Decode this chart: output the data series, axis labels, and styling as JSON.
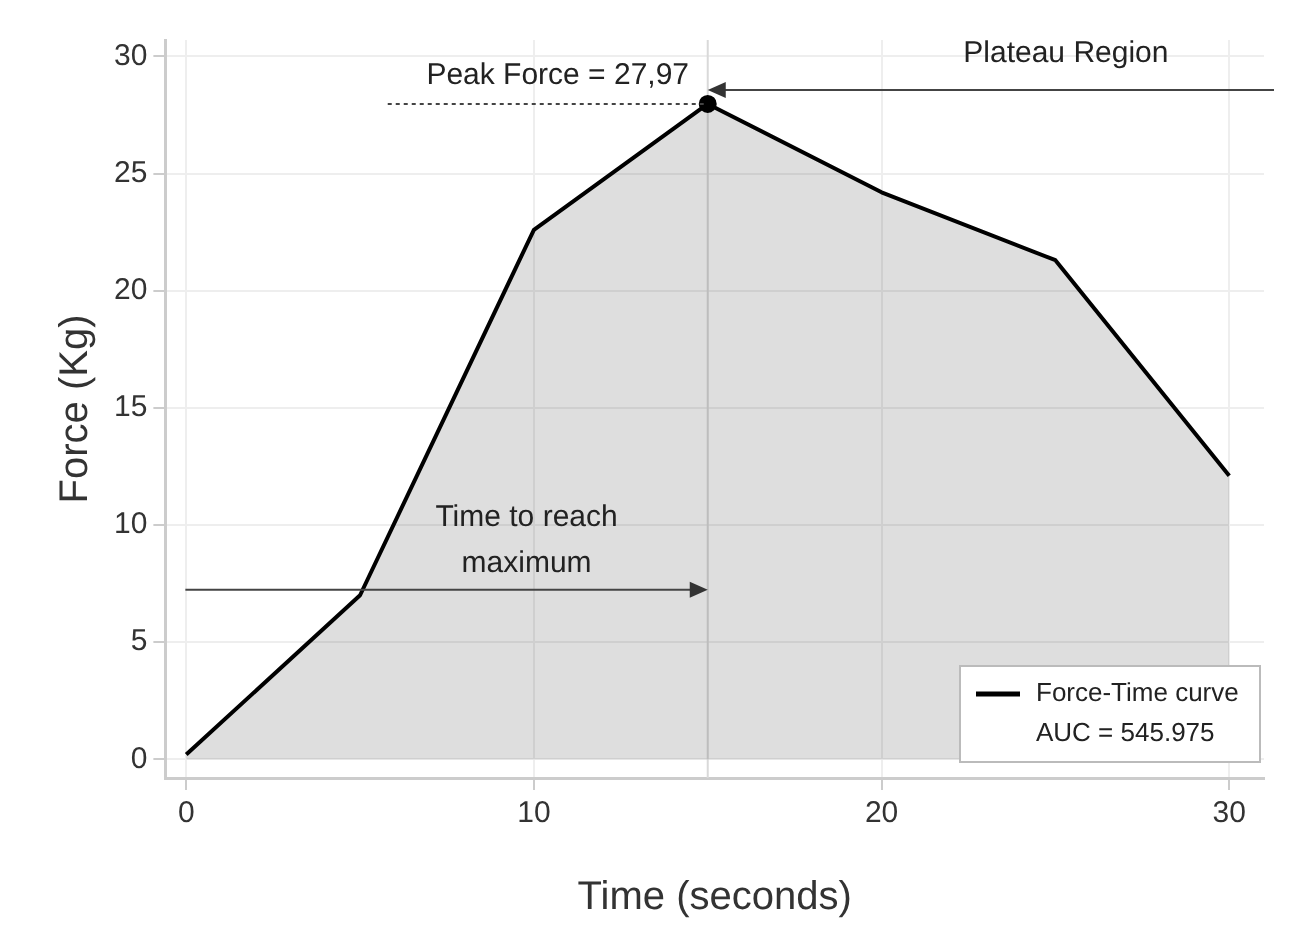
{
  "chart_data": {
    "type": "area",
    "xlabel": "Time (seconds)",
    "ylabel": "Force (Kg)",
    "x": [
      0,
      5,
      10,
      15,
      20,
      25,
      30
    ],
    "series": [
      {
        "name": "Force-Time curve",
        "color": "#000000",
        "values": [
          0.2,
          7,
          22.6,
          27.97,
          24.2,
          21.3,
          12.1
        ]
      },
      {
        "type": "scatter",
        "color": "#000000",
        "x": [
          15
        ],
        "values": [
          27.97
        ]
      }
    ],
    "xlim": [
      -0.6,
      31
    ],
    "xticks": [
      0,
      10,
      20,
      30
    ],
    "ylim": [
      -0.8,
      30.7
    ],
    "yticks": [
      0,
      5,
      10,
      15,
      20,
      25,
      30
    ],
    "grid": true,
    "legend": "bottom right",
    "ref_lines": [
      {
        "axis": "x",
        "value": 15,
        "color": "#d9d9d9"
      }
    ],
    "annotations": [
      "Peak Force = 27,97",
      "Plateau Region",
      "Time to reach maximum",
      "AUC = 545.975"
    ]
  }
}
